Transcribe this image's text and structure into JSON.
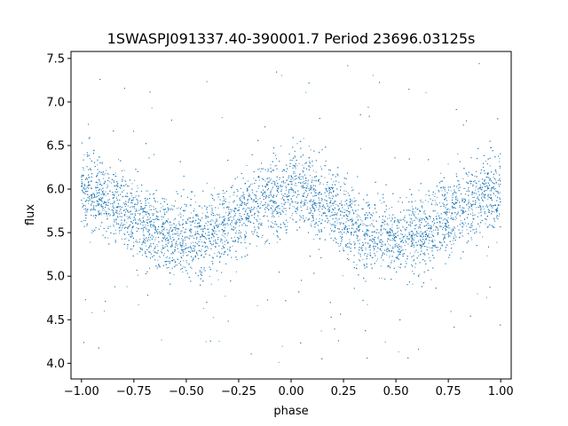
{
  "chart_data": {
    "type": "scatter",
    "title": "1SWASPJ091337.40-390001.7 Period 23696.03125s",
    "xlabel": "phase",
    "ylabel": "flux",
    "xlim": [
      -1.05,
      1.05
    ],
    "ylim": [
      3.82,
      7.58
    ],
    "x_ticks": [
      -1.0,
      -0.75,
      -0.5,
      -0.25,
      0.0,
      0.25,
      0.5,
      0.75,
      1.0
    ],
    "x_tick_labels": [
      "−1.00",
      "−0.75",
      "−0.50",
      "−0.25",
      "0.00",
      "0.25",
      "0.50",
      "0.75",
      "1.00"
    ],
    "y_ticks": [
      4.0,
      4.5,
      5.0,
      5.5,
      6.0,
      6.5,
      7.0,
      7.5
    ],
    "y_tick_labels": [
      "4.0",
      "4.5",
      "5.0",
      "5.5",
      "6.0",
      "6.5",
      "7.0",
      "7.5"
    ],
    "grid": false,
    "point_color": "#1f77b4",
    "series": [
      {
        "x_range": [
          -1.0,
          1.0
        ],
        "trend_mean": 5.69,
        "trend_amplitude": 0.27,
        "trend_period": 1.0,
        "trend_peak_phase": 0.0,
        "scatter_sd": 0.22
      }
    ]
  }
}
